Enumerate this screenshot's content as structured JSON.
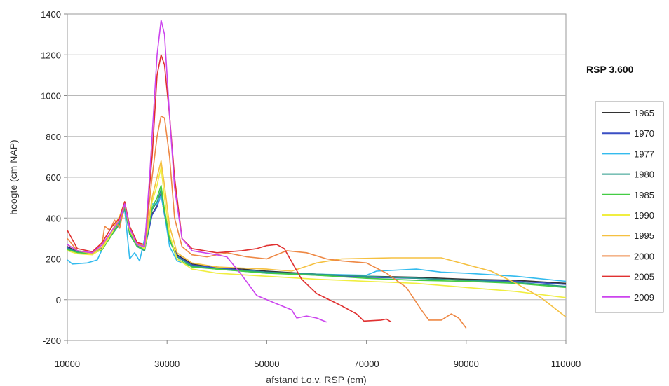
{
  "chart_data": {
    "type": "line",
    "title": "RSP 3.600",
    "xlabel": "afstand t.o.v. RSP (cm)",
    "ylabel": "hoogte (cm NAP)",
    "xlim": [
      10000,
      110000
    ],
    "ylim": [
      -200,
      1400
    ],
    "x_ticks": [
      10000,
      30000,
      50000,
      70000,
      90000,
      110000
    ],
    "y_ticks": [
      -200,
      0,
      200,
      400,
      600,
      800,
      1000,
      1200,
      1400
    ],
    "grid": "horizontal",
    "legend_position": "right",
    "series": [
      {
        "name": "1965",
        "color": "#333333",
        "points": [
          [
            10000,
            260
          ],
          [
            12000,
            235
          ],
          [
            15000,
            225
          ],
          [
            17000,
            260
          ],
          [
            19000,
            330
          ],
          [
            20500,
            380
          ],
          [
            21500,
            460
          ],
          [
            22500,
            330
          ],
          [
            24000,
            270
          ],
          [
            25500,
            250
          ],
          [
            27000,
            420
          ],
          [
            28000,
            460
          ],
          [
            28800,
            520
          ],
          [
            29500,
            420
          ],
          [
            30500,
            300
          ],
          [
            32000,
            220
          ],
          [
            35000,
            175
          ],
          [
            40000,
            160
          ],
          [
            50000,
            140
          ],
          [
            60000,
            125
          ],
          [
            70000,
            115
          ],
          [
            80000,
            110
          ],
          [
            90000,
            100
          ],
          [
            100000,
            95
          ],
          [
            110000,
            80
          ]
        ]
      },
      {
        "name": "1970",
        "color": "#3a4fc4",
        "points": [
          [
            10000,
            255
          ],
          [
            12000,
            232
          ],
          [
            15000,
            222
          ],
          [
            17000,
            255
          ],
          [
            19000,
            325
          ],
          [
            20500,
            375
          ],
          [
            21500,
            455
          ],
          [
            22500,
            325
          ],
          [
            24000,
            265
          ],
          [
            25500,
            245
          ],
          [
            27000,
            415
          ],
          [
            28000,
            455
          ],
          [
            28800,
            515
          ],
          [
            29500,
            415
          ],
          [
            30500,
            295
          ],
          [
            32000,
            215
          ],
          [
            35000,
            170
          ],
          [
            40000,
            155
          ],
          [
            50000,
            135
          ],
          [
            60000,
            120
          ],
          [
            70000,
            110
          ],
          [
            80000,
            105
          ],
          [
            90000,
            95
          ],
          [
            100000,
            90
          ],
          [
            110000,
            75
          ]
        ]
      },
      {
        "name": "1977",
        "color": "#33bbee",
        "points": [
          [
            10000,
            195
          ],
          [
            11000,
            175
          ],
          [
            14000,
            180
          ],
          [
            16000,
            195
          ],
          [
            18000,
            300
          ],
          [
            20000,
            370
          ],
          [
            21500,
            440
          ],
          [
            22500,
            200
          ],
          [
            23500,
            230
          ],
          [
            24500,
            190
          ],
          [
            25500,
            300
          ],
          [
            27000,
            470
          ],
          [
            28000,
            470
          ],
          [
            28800,
            510
          ],
          [
            29500,
            420
          ],
          [
            30500,
            260
          ],
          [
            32000,
            190
          ],
          [
            35000,
            165
          ],
          [
            40000,
            150
          ],
          [
            50000,
            130
          ],
          [
            60000,
            125
          ],
          [
            70000,
            120
          ],
          [
            72000,
            140
          ],
          [
            80000,
            150
          ],
          [
            85000,
            135
          ],
          [
            90000,
            130
          ],
          [
            100000,
            115
          ],
          [
            110000,
            90
          ]
        ]
      },
      {
        "name": "1980",
        "color": "#2a9a8a",
        "points": [
          [
            10000,
            250
          ],
          [
            12000,
            235
          ],
          [
            15000,
            228
          ],
          [
            17000,
            250
          ],
          [
            19000,
            320
          ],
          [
            20500,
            370
          ],
          [
            21500,
            450
          ],
          [
            22500,
            320
          ],
          [
            24000,
            260
          ],
          [
            25500,
            240
          ],
          [
            27000,
            440
          ],
          [
            28000,
            480
          ],
          [
            28800,
            540
          ],
          [
            29500,
            430
          ],
          [
            30500,
            290
          ],
          [
            32000,
            210
          ],
          [
            35000,
            165
          ],
          [
            40000,
            150
          ],
          [
            50000,
            135
          ],
          [
            60000,
            125
          ],
          [
            70000,
            115
          ],
          [
            80000,
            105
          ],
          [
            90000,
            95
          ],
          [
            100000,
            85
          ],
          [
            110000,
            65
          ]
        ]
      },
      {
        "name": "1985",
        "color": "#44cc44",
        "points": [
          [
            10000,
            245
          ],
          [
            12000,
            230
          ],
          [
            15000,
            225
          ],
          [
            17000,
            245
          ],
          [
            19000,
            320
          ],
          [
            20500,
            380
          ],
          [
            21500,
            460
          ],
          [
            22500,
            330
          ],
          [
            24000,
            260
          ],
          [
            25500,
            245
          ],
          [
            27000,
            450
          ],
          [
            28000,
            500
          ],
          [
            28800,
            560
          ],
          [
            29500,
            440
          ],
          [
            30500,
            300
          ],
          [
            32000,
            200
          ],
          [
            35000,
            160
          ],
          [
            40000,
            150
          ],
          [
            50000,
            130
          ],
          [
            60000,
            120
          ],
          [
            70000,
            105
          ],
          [
            80000,
            95
          ],
          [
            90000,
            90
          ],
          [
            100000,
            80
          ],
          [
            110000,
            60
          ]
        ]
      },
      {
        "name": "1990",
        "color": "#f0ee40",
        "points": [
          [
            10000,
            240
          ],
          [
            12000,
            225
          ],
          [
            15000,
            220
          ],
          [
            17000,
            250
          ],
          [
            19000,
            330
          ],
          [
            20500,
            400
          ],
          [
            21500,
            470
          ],
          [
            22500,
            340
          ],
          [
            24000,
            270
          ],
          [
            25500,
            250
          ],
          [
            27000,
            480
          ],
          [
            28000,
            560
          ],
          [
            28800,
            650
          ],
          [
            29500,
            500
          ],
          [
            30500,
            320
          ],
          [
            32000,
            200
          ],
          [
            35000,
            150
          ],
          [
            40000,
            130
          ],
          [
            50000,
            115
          ],
          [
            60000,
            100
          ],
          [
            70000,
            90
          ],
          [
            80000,
            80
          ],
          [
            90000,
            60
          ],
          [
            100000,
            40
          ],
          [
            110000,
            10
          ]
        ]
      },
      {
        "name": "1995",
        "color": "#f5c040",
        "points": [
          [
            10000,
            270
          ],
          [
            12000,
            240
          ],
          [
            15000,
            225
          ],
          [
            17000,
            260
          ],
          [
            19000,
            340
          ],
          [
            20500,
            410
          ],
          [
            21500,
            480
          ],
          [
            22500,
            360
          ],
          [
            24000,
            280
          ],
          [
            25500,
            260
          ],
          [
            27000,
            500
          ],
          [
            28000,
            600
          ],
          [
            28800,
            680
          ],
          [
            29500,
            560
          ],
          [
            30500,
            360
          ],
          [
            32000,
            230
          ],
          [
            35000,
            180
          ],
          [
            40000,
            160
          ],
          [
            50000,
            150
          ],
          [
            55000,
            140
          ],
          [
            60000,
            180
          ],
          [
            65000,
            200
          ],
          [
            75000,
            205
          ],
          [
            85000,
            205
          ],
          [
            95000,
            140
          ],
          [
            100000,
            80
          ],
          [
            105000,
            10
          ],
          [
            110000,
            -85
          ]
        ]
      },
      {
        "name": "2000",
        "color": "#ee8844",
        "points": [
          [
            10000,
            300
          ],
          [
            12000,
            240
          ],
          [
            15000,
            230
          ],
          [
            17000,
            280
          ],
          [
            17500,
            360
          ],
          [
            18500,
            340
          ],
          [
            19500,
            390
          ],
          [
            20500,
            350
          ],
          [
            21500,
            470
          ],
          [
            22500,
            350
          ],
          [
            24000,
            280
          ],
          [
            25500,
            260
          ],
          [
            27000,
            600
          ],
          [
            28000,
            800
          ],
          [
            28800,
            900
          ],
          [
            29500,
            890
          ],
          [
            30500,
            700
          ],
          [
            31500,
            400
          ],
          [
            33000,
            260
          ],
          [
            35000,
            220
          ],
          [
            38000,
            210
          ],
          [
            42000,
            230
          ],
          [
            46000,
            210
          ],
          [
            50000,
            200
          ],
          [
            54000,
            240
          ],
          [
            58000,
            230
          ],
          [
            62000,
            200
          ],
          [
            65000,
            190
          ],
          [
            70000,
            180
          ],
          [
            74000,
            130
          ],
          [
            78000,
            60
          ],
          [
            81000,
            -50
          ],
          [
            82500,
            -100
          ],
          [
            85000,
            -100
          ],
          [
            87000,
            -70
          ],
          [
            88500,
            -90
          ],
          [
            90000,
            -140
          ]
        ]
      },
      {
        "name": "2005",
        "color": "#e03030",
        "points": [
          [
            10000,
            340
          ],
          [
            12000,
            250
          ],
          [
            15000,
            235
          ],
          [
            17000,
            280
          ],
          [
            19000,
            360
          ],
          [
            20500,
            400
          ],
          [
            21500,
            480
          ],
          [
            22500,
            360
          ],
          [
            24000,
            280
          ],
          [
            25500,
            270
          ],
          [
            27000,
            700
          ],
          [
            28000,
            1100
          ],
          [
            28800,
            1200
          ],
          [
            29500,
            1150
          ],
          [
            30500,
            900
          ],
          [
            31500,
            600
          ],
          [
            33000,
            300
          ],
          [
            35000,
            250
          ],
          [
            40000,
            230
          ],
          [
            45000,
            240
          ],
          [
            48000,
            250
          ],
          [
            50000,
            265
          ],
          [
            52000,
            270
          ],
          [
            53500,
            250
          ],
          [
            57000,
            100
          ],
          [
            60000,
            30
          ],
          [
            65000,
            -30
          ],
          [
            68000,
            -70
          ],
          [
            69500,
            -105
          ],
          [
            73000,
            -100
          ],
          [
            74000,
            -95
          ],
          [
            75000,
            -110
          ]
        ]
      },
      {
        "name": "2009",
        "color": "#cc44ee",
        "points": [
          [
            10000,
            270
          ],
          [
            12000,
            240
          ],
          [
            15000,
            230
          ],
          [
            17000,
            270
          ],
          [
            19000,
            340
          ],
          [
            20500,
            390
          ],
          [
            21500,
            470
          ],
          [
            22500,
            350
          ],
          [
            24000,
            270
          ],
          [
            25500,
            260
          ],
          [
            26500,
            600
          ],
          [
            28000,
            1200
          ],
          [
            28800,
            1370
          ],
          [
            29500,
            1300
          ],
          [
            30500,
            900
          ],
          [
            31500,
            550
          ],
          [
            33000,
            300
          ],
          [
            35000,
            240
          ],
          [
            40000,
            220
          ],
          [
            42000,
            210
          ],
          [
            45000,
            120
          ],
          [
            48000,
            20
          ],
          [
            52000,
            -20
          ],
          [
            55000,
            -50
          ],
          [
            56000,
            -90
          ],
          [
            58000,
            -80
          ],
          [
            60000,
            -90
          ],
          [
            62000,
            -110
          ]
        ]
      }
    ]
  }
}
